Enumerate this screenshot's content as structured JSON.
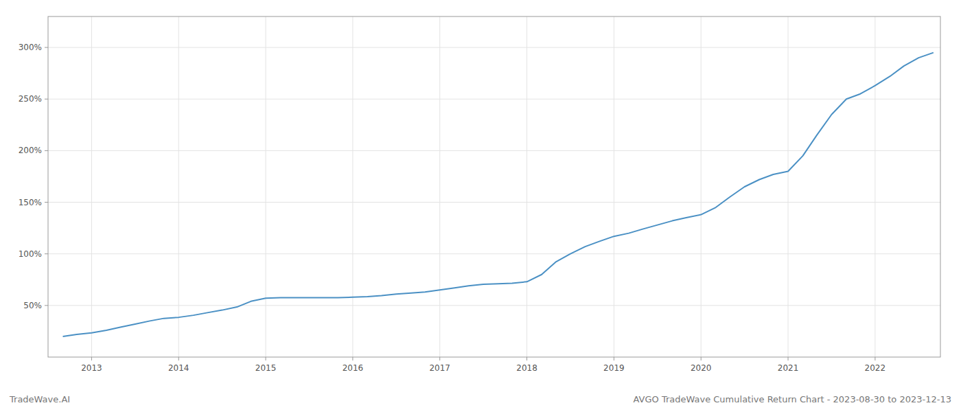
{
  "chart_data": {
    "type": "line",
    "title": "AVGO TradeWave Cumulative Return Chart - 2023-08-30 to 2023-12-13",
    "annotations": [
      "TradeWave.AI"
    ],
    "color": "#4a90c4",
    "grid": true,
    "x": [
      2012.67,
      2012.83,
      2013.0,
      2013.17,
      2013.33,
      2013.5,
      2013.67,
      2013.83,
      2014.0,
      2014.17,
      2014.33,
      2014.5,
      2014.67,
      2014.83,
      2015.0,
      2015.17,
      2015.33,
      2015.5,
      2015.67,
      2015.83,
      2016.0,
      2016.17,
      2016.33,
      2016.5,
      2016.67,
      2016.83,
      2017.0,
      2017.17,
      2017.33,
      2017.5,
      2017.67,
      2017.83,
      2018.0,
      2018.17,
      2018.33,
      2018.5,
      2018.67,
      2018.83,
      2019.0,
      2019.17,
      2019.33,
      2019.5,
      2019.67,
      2019.83,
      2020.0,
      2020.17,
      2020.33,
      2020.5,
      2020.67,
      2020.83,
      2021.0,
      2021.17,
      2021.33,
      2021.5,
      2021.67,
      2021.83,
      2022.0,
      2022.17,
      2022.33,
      2022.5,
      2022.67
    ],
    "values": [
      20.0,
      22.0,
      23.5,
      26.0,
      29.0,
      32.0,
      35.0,
      37.5,
      38.5,
      40.5,
      43.0,
      45.5,
      48.5,
      54.0,
      57.0,
      57.5,
      57.5,
      57.5,
      57.5,
      57.5,
      58.0,
      58.5,
      59.5,
      61.0,
      62.0,
      63.0,
      65.0,
      67.0,
      69.0,
      70.5,
      71.0,
      71.5,
      73.0,
      80.0,
      92.0,
      100.0,
      107.0,
      112.0,
      117.0,
      120.0,
      124.0,
      128.0,
      132.0,
      135.0,
      138.0,
      145.0,
      155.0,
      165.0,
      172.0,
      177.0,
      180.0,
      195.0,
      215.0,
      235.0,
      250.0,
      255.0,
      263.0,
      272.0,
      282.0,
      290.0,
      295.0
    ],
    "xlim": [
      2012.5,
      2022.75
    ],
    "xticks": [
      2013,
      2014,
      2015,
      2016,
      2017,
      2018,
      2019,
      2020,
      2021,
      2022
    ],
    "ylim": [
      0,
      330
    ],
    "yticks": [
      {
        "value": 50,
        "label": "50%"
      },
      {
        "value": 100,
        "label": "100%"
      },
      {
        "value": 150,
        "label": "150%"
      },
      {
        "value": 200,
        "label": "200%"
      },
      {
        "value": 250,
        "label": "250%"
      },
      {
        "value": 300,
        "label": "300%"
      }
    ]
  }
}
